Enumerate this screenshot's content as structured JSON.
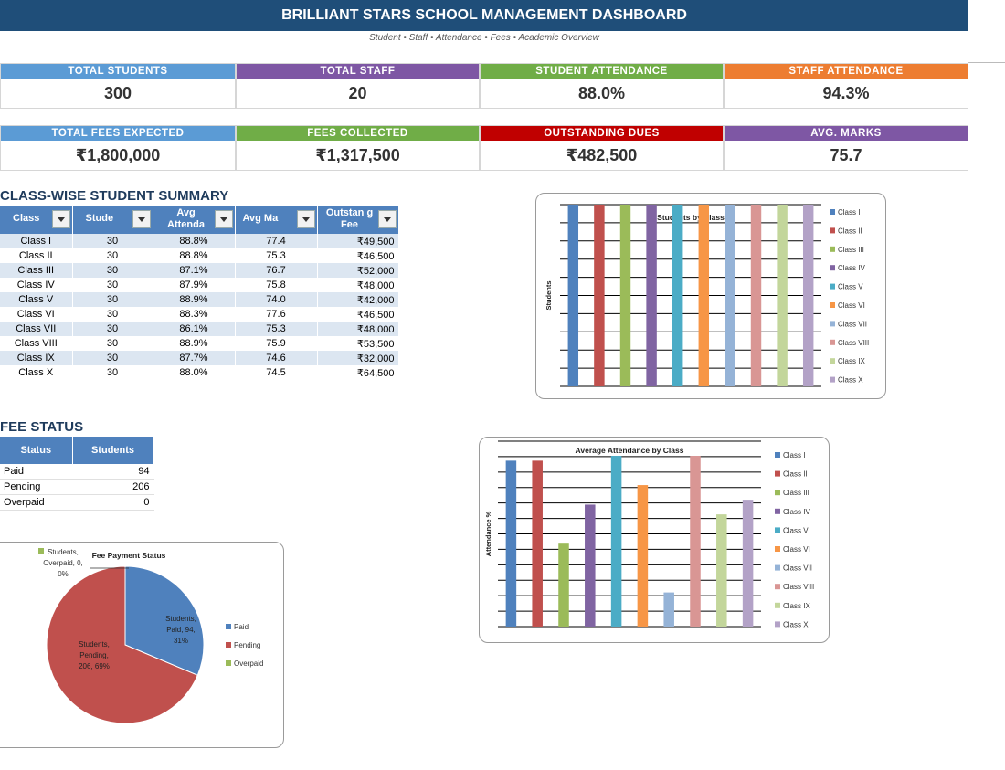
{
  "header": {
    "title": "BRILLIANT STARS SCHOOL MANAGEMENT DASHBOARD",
    "subtitle": "Student • Staff • Attendance • Fees • Academic Overview"
  },
  "kpis_row1": [
    {
      "label": "TOTAL STUDENTS",
      "value": "300",
      "color": "#5b9bd5"
    },
    {
      "label": "TOTAL STAFF",
      "value": "20",
      "color": "#7e57a4"
    },
    {
      "label": "STUDENT ATTENDANCE",
      "value": "88.0%",
      "color": "#70ad47"
    },
    {
      "label": "STAFF ATTENDANCE",
      "value": "94.3%",
      "color": "#ed7d31"
    }
  ],
  "kpis_row2": [
    {
      "label": "TOTAL FEES EXPECTED",
      "value": "₹1,800,000",
      "color": "#5b9bd5"
    },
    {
      "label": "FEES COLLECTED",
      "value": "₹1,317,500",
      "color": "#70ad47"
    },
    {
      "label": "OUTSTANDING DUES",
      "value": "₹482,500",
      "color": "#c00000"
    },
    {
      "label": "AVG. MARKS",
      "value": "75.7",
      "color": "#7e57a4"
    }
  ],
  "class_summary": {
    "title": "CLASS-WISE STUDENT SUMMARY",
    "headers": [
      "Class",
      "Stude",
      "Avg Attenda",
      "Avg Ma",
      "Outstan g Fee"
    ],
    "rows": [
      [
        "Class I",
        "30",
        "88.8%",
        "77.4",
        "₹49,500"
      ],
      [
        "Class II",
        "30",
        "88.8%",
        "75.3",
        "₹46,500"
      ],
      [
        "Class III",
        "30",
        "87.1%",
        "76.7",
        "₹52,000"
      ],
      [
        "Class IV",
        "30",
        "87.9%",
        "75.8",
        "₹48,000"
      ],
      [
        "Class V",
        "30",
        "88.9%",
        "74.0",
        "₹42,000"
      ],
      [
        "Class VI",
        "30",
        "88.3%",
        "77.6",
        "₹46,500"
      ],
      [
        "Class VII",
        "30",
        "86.1%",
        "75.3",
        "₹48,000"
      ],
      [
        "Class VIII",
        "30",
        "88.9%",
        "75.9",
        "₹53,500"
      ],
      [
        "Class IX",
        "30",
        "87.7%",
        "74.6",
        "₹32,000"
      ],
      [
        "Class X",
        "30",
        "88.0%",
        "74.5",
        "₹64,500"
      ]
    ]
  },
  "fee_status": {
    "title": "FEE STATUS",
    "headers": [
      "Status",
      "Students"
    ],
    "rows": [
      [
        "Paid",
        "94"
      ],
      [
        "Pending",
        "206"
      ],
      [
        "Overpaid",
        "0"
      ]
    ]
  },
  "series_colors": [
    "#4f81bd",
    "#c0504d",
    "#9bbb59",
    "#8064a2",
    "#4bacc6",
    "#f79646",
    "#95b3d7",
    "#d99694",
    "#c3d69b",
    "#b3a2c7"
  ],
  "chart_data": [
    {
      "type": "bar",
      "title": "Students by Class",
      "ylabel": "Students",
      "xlabel": "",
      "categories": [
        "Class I",
        "Class II",
        "Class III",
        "Class IV",
        "Class V",
        "Class VI",
        "Class VII",
        "Class VIII",
        "Class IX",
        "Class X"
      ],
      "values": [
        30,
        30,
        30,
        30,
        30,
        30,
        30,
        30,
        30,
        30
      ],
      "ylim": [
        0,
        30
      ],
      "grid": true,
      "legend": "right"
    },
    {
      "type": "bar",
      "title": "Average Attendance by Class",
      "ylabel": "Attendance %",
      "xlabel": "",
      "categories": [
        "Class I",
        "Class II",
        "Class III",
        "Class IV",
        "Class V",
        "Class VI",
        "Class VII",
        "Class VIII",
        "Class IX",
        "Class X"
      ],
      "values": [
        88.8,
        88.8,
        87.1,
        87.9,
        88.9,
        88.3,
        86.1,
        88.9,
        87.7,
        88.0
      ],
      "ylim": [
        85.4,
        89.2
      ],
      "grid": true,
      "legend": "right"
    },
    {
      "type": "pie",
      "title": "Fee Payment Status",
      "categories": [
        "Paid",
        "Pending",
        "Overpaid"
      ],
      "values": [
        94,
        206,
        0
      ],
      "colors": [
        "#4f81bd",
        "#c0504d",
        "#9bbb59"
      ],
      "data_labels": [
        [
          "Students,",
          "Paid, 94,",
          "31%"
        ],
        [
          "Students,",
          "Pending,",
          "206, 69%"
        ],
        [
          "Students,",
          "Overpaid, 0,",
          "0%"
        ]
      ],
      "legend": "right"
    }
  ]
}
